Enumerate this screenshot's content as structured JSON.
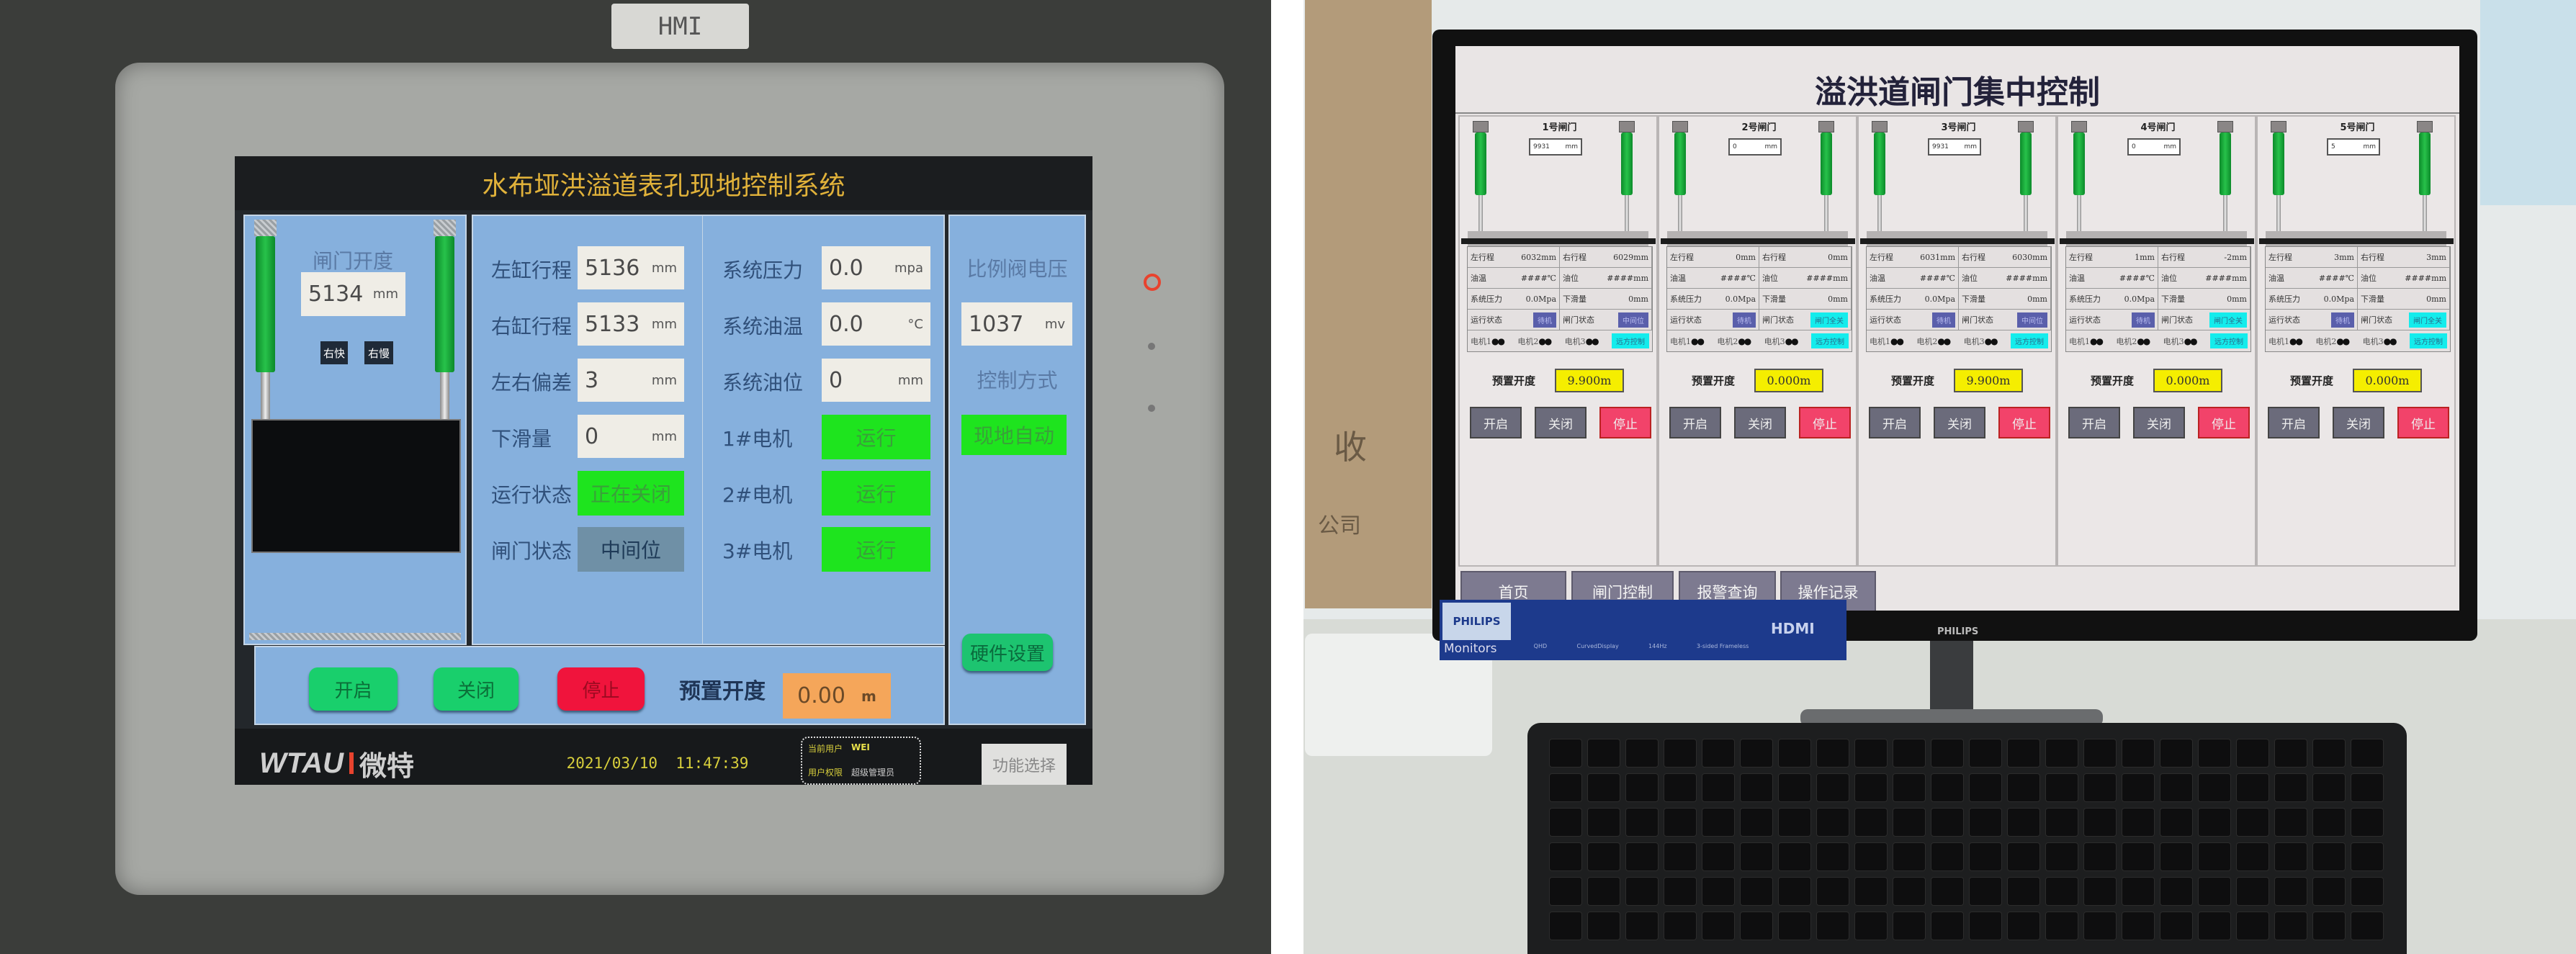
{
  "left_hmi": {
    "tag": "HMI",
    "title": "水布垭洪溢道表孔现地控制系统",
    "gate_panel": {
      "label": "闸门开度",
      "value": "5134",
      "unit": "mm",
      "btn_fast": "右快",
      "btn_slow": "右慢"
    },
    "col1": [
      {
        "label": "左缸行程",
        "value": "5136",
        "unit": "mm",
        "style": "box"
      },
      {
        "label": "右缸行程",
        "value": "5133",
        "unit": "mm",
        "style": "box"
      },
      {
        "label": "左右偏差",
        "value": "3",
        "unit": "mm",
        "style": "box"
      },
      {
        "label": "下滑量",
        "value": "0",
        "unit": "mm",
        "style": "box"
      },
      {
        "label": "运行状态",
        "value": "正在关闭",
        "unit": "",
        "style": "green"
      },
      {
        "label": "闸门状态",
        "value": "中间位",
        "unit": "",
        "style": "gray"
      }
    ],
    "col2": [
      {
        "label": "系统压力",
        "value": "0.0",
        "unit": "mpa",
        "style": "box"
      },
      {
        "label": "系统油温",
        "value": "0.0",
        "unit": "°C",
        "style": "box"
      },
      {
        "label": "系统油位",
        "value": "0",
        "unit": "mm",
        "style": "box"
      },
      {
        "label": "1#电机",
        "value": "运行",
        "unit": "",
        "style": "green"
      },
      {
        "label": "2#电机",
        "value": "运行",
        "unit": "",
        "style": "green"
      },
      {
        "label": "3#电机",
        "value": "运行",
        "unit": "",
        "style": "green"
      }
    ],
    "right_panel": {
      "valve_label": "比例阀电压",
      "valve_value": "1037",
      "valve_unit": "mv",
      "mode_label": "控制方式",
      "mode_value": "现地自动",
      "hw_button": "硬件设置"
    },
    "controls": {
      "open": "开启",
      "close": "关闭",
      "stop": "停止",
      "preset_label": "预置开度",
      "preset_value": "0.00",
      "preset_unit": "m"
    },
    "footer": {
      "logo_en": "WTAU",
      "logo_cn": "微特",
      "datetime": "2021/03/10  11:47:39",
      "user_label": "当前用户",
      "user_value": "WEI",
      "perm_label": "用户权限",
      "perm_value": "超级管理员",
      "func_button": "功能选择"
    },
    "colors": {
      "panel": "#86b0dd",
      "green": "#1ee41e",
      "title": "#e1b23a",
      "stop": "#f0143c",
      "preset": "#f5a65a"
    }
  },
  "right_hmi": {
    "title": "溢洪道闸门集中控制",
    "labels": {
      "left": "左行程",
      "right": "右行程",
      "oil_temp": "油温",
      "oil_level": "油位",
      "pressure": "系统压力",
      "slide": "下滑量",
      "run_state": "运行状态",
      "gate_state": "闸门状态",
      "m1": "电机1",
      "m2": "电机2",
      "m3": "电机3",
      "preset": "预置开度",
      "open": "开启",
      "close": "关闭",
      "stop": "停止"
    },
    "gates": [
      {
        "name": "1号闸门",
        "opening": "9931",
        "unit": "mm",
        "left": "6032mm",
        "right": "6029mm",
        "oil_temp": "####℃",
        "oil_level": "####mm",
        "pressure": "0.0Mpa",
        "slide": "0mm",
        "run_state": "待机",
        "gate_state": "中间位",
        "control": "远方控制",
        "preset": "9.900m"
      },
      {
        "name": "2号闸门",
        "opening": "0",
        "unit": "mm",
        "left": "0mm",
        "right": "0mm",
        "oil_temp": "####℃",
        "oil_level": "####mm",
        "pressure": "0.0Mpa",
        "slide": "0mm",
        "run_state": "待机",
        "gate_state": "闸门全关",
        "control": "远方控制",
        "preset": "0.000m"
      },
      {
        "name": "3号闸门",
        "opening": "9931",
        "unit": "mm",
        "left": "6031mm",
        "right": "6030mm",
        "oil_temp": "####℃",
        "oil_level": "####mm",
        "pressure": "0.0Mpa",
        "slide": "0mm",
        "run_state": "待机",
        "gate_state": "中间位",
        "control": "远方控制",
        "preset": "9.900m"
      },
      {
        "name": "4号闸门",
        "opening": "0",
        "unit": "mm",
        "left": "1mm",
        "right": "-2mm",
        "oil_temp": "####℃",
        "oil_level": "####mm",
        "pressure": "0.0Mpa",
        "slide": "0mm",
        "run_state": "待机",
        "gate_state": "闸门全关",
        "control": "远方控制",
        "preset": "0.000m"
      },
      {
        "name": "5号闸门",
        "opening": "5",
        "unit": "mm",
        "left": "3mm",
        "right": "3mm",
        "oil_temp": "####℃",
        "oil_level": "####mm",
        "pressure": "0.0Mpa",
        "slide": "0mm",
        "run_state": "待机",
        "gate_state": "闸门全关",
        "control": "远方控制",
        "preset": "0.000m"
      }
    ],
    "nav": [
      "首页",
      "闸门控制",
      "报警查询",
      "操作记录"
    ],
    "colors": {
      "run_state": "#5a5fab",
      "remote": "#14ecec",
      "preset": "#f5ee00",
      "stop": "#f2436a"
    }
  },
  "monitor_sticker": {
    "brand": "PHILIPS",
    "line": "Monitors",
    "features": [
      "QHD",
      "CurvedDisplay",
      "144Hz",
      "3-sided Frameless"
    ],
    "hdmi": "HDMI",
    "bezel_brand": "PHILIPS"
  },
  "background_text": {
    "poster_char": "收",
    "box_text": "公司"
  }
}
